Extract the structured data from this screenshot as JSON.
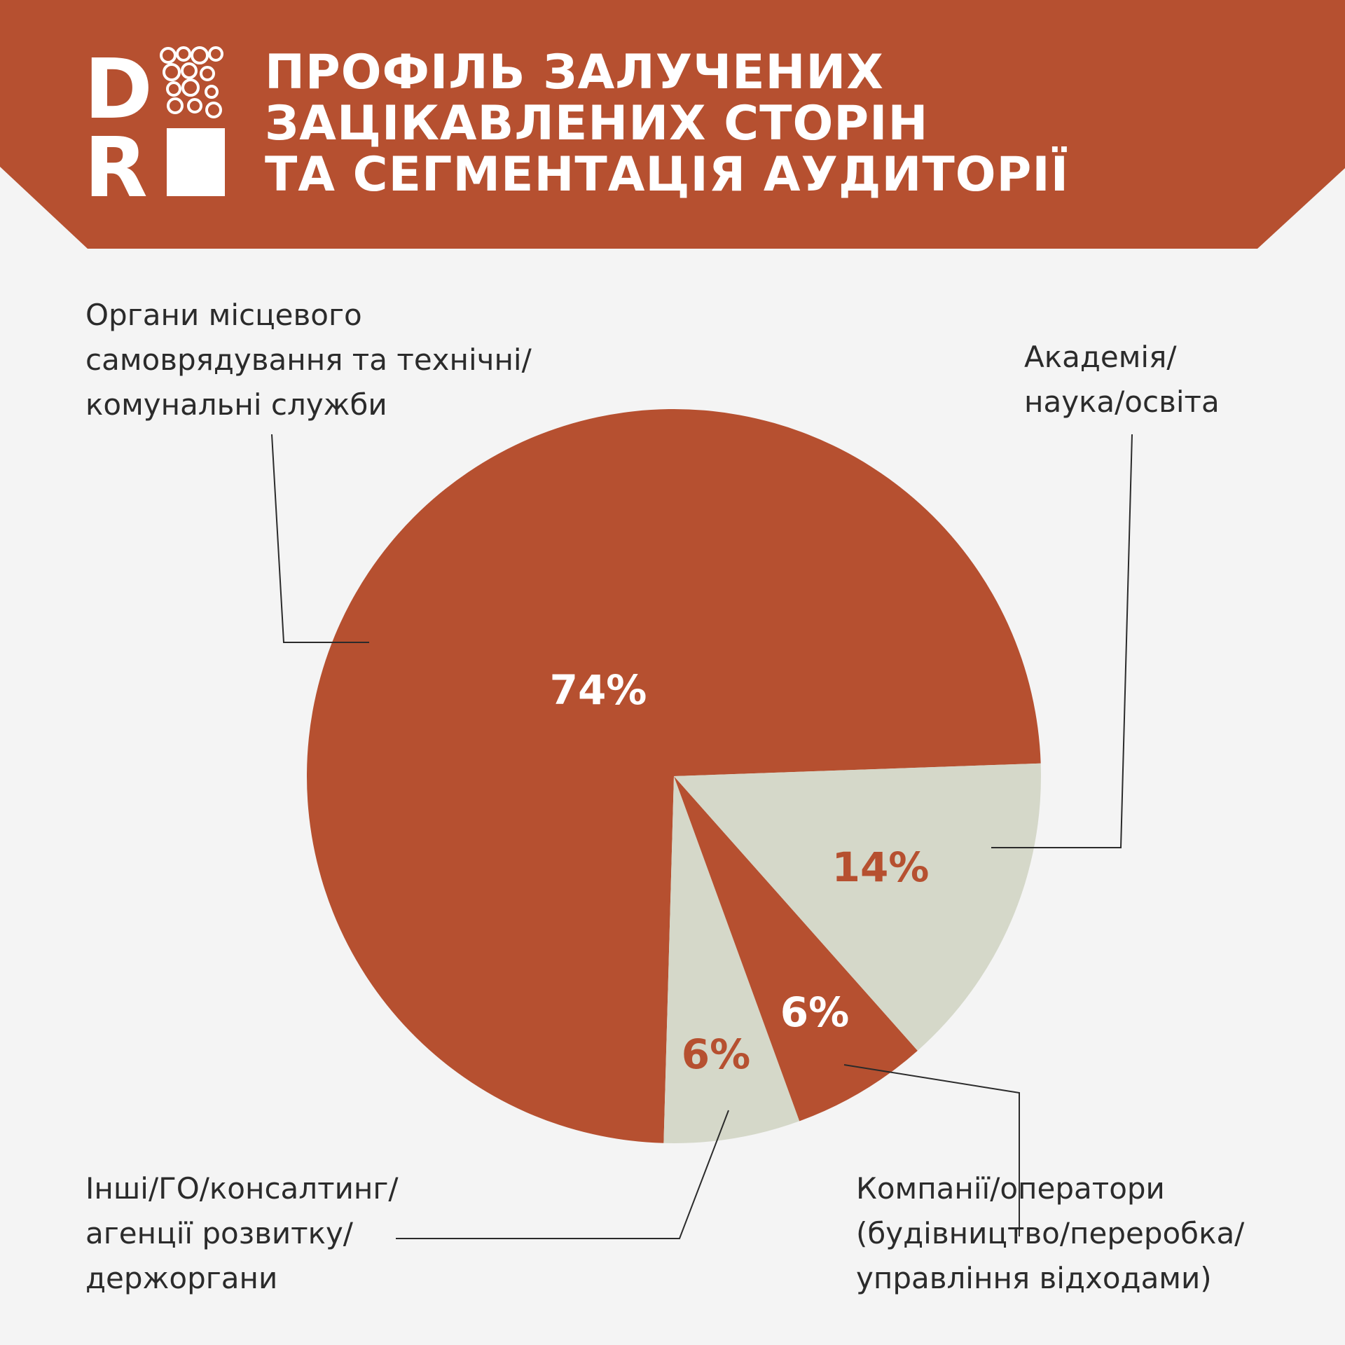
{
  "header": {
    "title_lines": [
      "ПРОФІЛЬ ЗАЛУЧЕНИХ",
      "ЗАЦІКАВЛЕНИХ СТОРІН",
      "ТА СЕГМЕНТАЦІЯ АУДИТОРІЇ"
    ],
    "logo_letters": [
      "D",
      "R"
    ],
    "brand_color": "#b65030"
  },
  "colors": {
    "background": "#f4f4f4",
    "accent": "#b65030",
    "secondary": "#d5d8c9",
    "text": "#2b2b2b",
    "on_accent": "#ffffff"
  },
  "chart_data": {
    "type": "pie",
    "start": "3 o'clock, counter-clockwise",
    "slices": [
      {
        "label_lines": [
          "Органи місцевого",
          "самоврядування та технічні/",
          "комунальні служби"
        ],
        "value": 74,
        "percent_label": "74%",
        "color": "#b65030",
        "percent_color": "#ffffff"
      },
      {
        "label_lines": [
          "Інші/ГО/консалтинг/",
          "агенції розвитку/",
          "держоргани"
        ],
        "value": 6,
        "percent_label": "6%",
        "color": "#d5d8c9",
        "percent_color": "#b65030"
      },
      {
        "label_lines": [
          "Компанії/оператори",
          "(будівництво/переробка/",
          "управління відходами)"
        ],
        "value": 6,
        "percent_label": "6%",
        "color": "#b65030",
        "percent_color": "#ffffff"
      },
      {
        "label_lines": [
          "Академія/",
          "наука/освіта"
        ],
        "value": 14,
        "percent_label": "14%",
        "color": "#d5d8c9",
        "percent_color": "#b65030"
      }
    ]
  }
}
